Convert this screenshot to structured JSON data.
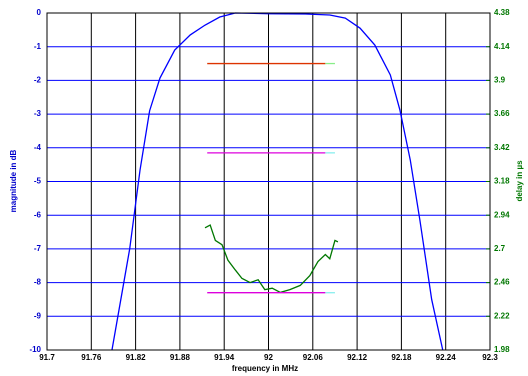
{
  "chart_data": {
    "type": "line",
    "xlabel": "frequency in MHz",
    "ylabel": "magnitude in dB",
    "y2label": "delay in µs",
    "xlim": [
      91.7,
      92.3
    ],
    "xticks": [
      91.7,
      91.76,
      91.82,
      91.88,
      91.94,
      92,
      92.06,
      92.12,
      92.18,
      92.24,
      92.3
    ],
    "ylim": [
      -10,
      0
    ],
    "yticks": [
      0,
      -1,
      -2,
      -3,
      -4,
      -5,
      -6,
      -7,
      -8,
      -9,
      -10
    ],
    "y2lim": [
      1.98,
      4.38
    ],
    "y2ticks": [
      1.98,
      2.22,
      2.46,
      2.7,
      2.94,
      3.18,
      3.42,
      3.66,
      3.9,
      4.14,
      4.38
    ],
    "grid": true,
    "series": [
      {
        "color": "#0000ff",
        "x": [
          91.788,
          91.812,
          91.826,
          91.839,
          91.853,
          91.873,
          91.894,
          91.914,
          91.934,
          91.955,
          92.0,
          92.05,
          92.083,
          92.104,
          92.124,
          92.144,
          92.165,
          92.178,
          92.192,
          92.205,
          92.221,
          92.236
        ],
        "values": [
          -10,
          -7.0,
          -4.66,
          -2.9,
          -1.93,
          -1.1,
          -0.65,
          -0.36,
          -0.12,
          0,
          -0.02,
          -0.03,
          -0.06,
          -0.15,
          -0.45,
          -0.95,
          -1.84,
          -2.88,
          -4.36,
          -6.14,
          -8.5,
          -10
        ]
      },
      {
        "color": "#007700",
        "axis": "y2",
        "x": [
          91.914,
          91.921,
          91.928,
          91.937,
          91.945,
          91.955,
          91.964,
          91.975,
          91.986,
          91.995,
          92.005,
          92.016,
          92.029,
          92.043,
          92.056,
          92.067,
          92.077,
          92.083,
          92.09,
          92.094
        ],
        "values": [
          2.85,
          2.87,
          2.76,
          2.73,
          2.62,
          2.55,
          2.49,
          2.46,
          2.48,
          2.41,
          2.42,
          2.39,
          2.41,
          2.44,
          2.51,
          2.61,
          2.66,
          2.63,
          2.76,
          2.75
        ]
      },
      {
        "color": "#dd3300",
        "x": [
          91.917,
          92.077
        ],
        "values": [
          -1.5,
          -1.5
        ]
      },
      {
        "color": "#88ee88",
        "x": [
          92.077,
          92.09
        ],
        "values": [
          -1.5,
          -1.5
        ]
      },
      {
        "color": "#dd00dd",
        "x": [
          91.917,
          92.077
        ],
        "values": [
          -4.15,
          -4.15
        ]
      },
      {
        "color": "#88eeee",
        "x": [
          92.077,
          92.09
        ],
        "values": [
          -4.15,
          -4.15
        ]
      },
      {
        "color": "#dd00dd",
        "x": [
          91.917,
          92.077
        ],
        "values": [
          -8.3,
          -8.3
        ]
      },
      {
        "color": "#88eeee",
        "x": [
          92.077,
          92.09
        ],
        "values": [
          -8.3,
          -8.3
        ]
      }
    ]
  }
}
